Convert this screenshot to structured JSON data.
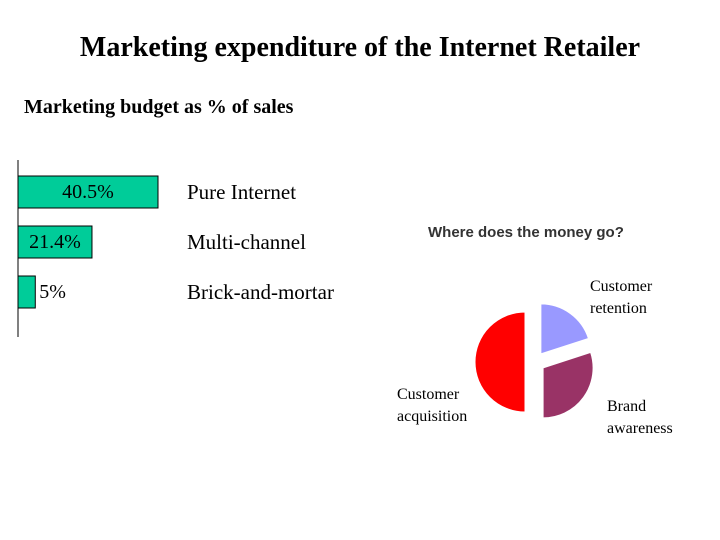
{
  "title": "Marketing expenditure of the Internet Retailer",
  "chart_data": [
    {
      "type": "bar",
      "orientation": "horizontal",
      "title": "Marketing budget as % of sales",
      "categories": [
        "Pure Internet",
        "Multi-channel",
        "Brick-and-mortar"
      ],
      "values": [
        40.5,
        21.4,
        5
      ],
      "value_labels": [
        "40.5%",
        "21.4%",
        "5%"
      ],
      "color": "#00cc99"
    },
    {
      "type": "pie",
      "title": "Where does the money go?",
      "categories": [
        "Customer retention",
        "Brand awareness",
        "Customer acquisition"
      ],
      "values": [
        20,
        30,
        50
      ],
      "colors": [
        "#9999ff",
        "#993366",
        "#ff0000"
      ],
      "exploded": true
    }
  ]
}
